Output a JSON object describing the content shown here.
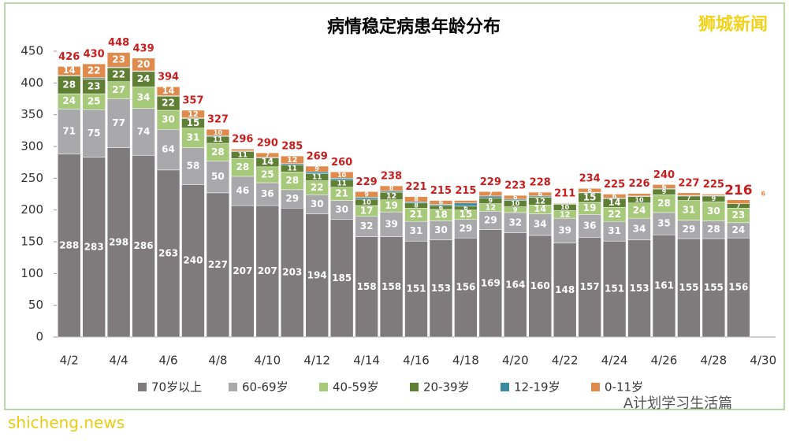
{
  "chart_data": {
    "type": "stacked-bar",
    "title": "病情稳定病患年龄分布",
    "watermark": "狮城新闻",
    "footer_left": "shicheng.news",
    "footer_right": "A计划学习生活篇",
    "categories": [
      "4/2",
      null,
      "4/4",
      null,
      "4/6",
      null,
      "4/8",
      null,
      "4/10",
      null,
      "4/12",
      null,
      "4/14",
      null,
      "4/16",
      null,
      "4/18",
      null,
      "4/20",
      null,
      "4/22",
      null,
      "4/24",
      null,
      "4/26",
      null,
      "4/28",
      null,
      "4/30"
    ],
    "series": [
      {
        "name": "70岁以上",
        "color": "#7f7b7c",
        "values": [
          288,
          283,
          298,
          286,
          263,
          240,
          227,
          207,
          207,
          203,
          194,
          185,
          158,
          158,
          151,
          153,
          156,
          169,
          164,
          160,
          148,
          157,
          151,
          153,
          161,
          155,
          155,
          156,
          null
        ]
      },
      {
        "name": "60-69岁",
        "color": "#a9a9ab",
        "values": [
          71,
          75,
          77,
          74,
          64,
          58,
          50,
          46,
          36,
          29,
          30,
          30,
          32,
          39,
          31,
          30,
          29,
          29,
          32,
          34,
          39,
          36,
          31,
          34,
          35,
          29,
          28,
          24,
          null
        ]
      },
      {
        "name": "40-59岁",
        "color": "#a6c97a",
        "values": [
          24,
          25,
          27,
          34,
          30,
          31,
          28,
          28,
          25,
          28,
          22,
          21,
          17,
          19,
          21,
          18,
          15,
          12,
          9,
          14,
          12,
          19,
          22,
          24,
          28,
          31,
          30,
          23,
          null
        ]
      },
      {
        "name": "20-39岁",
        "color": "#5f7f35",
        "values": [
          28,
          23,
          22,
          24,
          22,
          15,
          11,
          11,
          14,
          11,
          11,
          11,
          10,
          12,
          8,
          6,
          6,
          9,
          10,
          12,
          10,
          15,
          14,
          10,
          9,
          7,
          9,
          7,
          null
        ]
      },
      {
        "name": "12-19岁",
        "color": "#3a8aa0",
        "values": [
          1,
          2,
          1,
          1,
          1,
          1,
          1,
          1,
          1,
          2,
          3,
          3,
          3,
          2,
          2,
          2,
          5,
          3,
          2,
          2,
          1,
          1,
          1,
          1,
          1,
          1,
          1,
          0,
          null
        ]
      },
      {
        "name": "0-11岁",
        "color": "#e08a4c",
        "values": [
          14,
          22,
          23,
          20,
          14,
          12,
          10,
          3,
          7,
          12,
          9,
          10,
          9,
          8,
          8,
          6,
          4,
          7,
          6,
          6,
          1,
          6,
          6,
          4,
          6,
          4,
          2,
          6,
          null
        ]
      }
    ],
    "totals": [
      426,
      430,
      448,
      439,
      394,
      357,
      327,
      296,
      290,
      285,
      269,
      260,
      229,
      238,
      221,
      215,
      215,
      229,
      223,
      228,
      211,
      234,
      225,
      226,
      240,
      227,
      225,
      216,
      null
    ],
    "ylim": [
      0,
      450
    ],
    "yticks": [
      0,
      50,
      100,
      150,
      200,
      250,
      300,
      350,
      400,
      450
    ]
  }
}
